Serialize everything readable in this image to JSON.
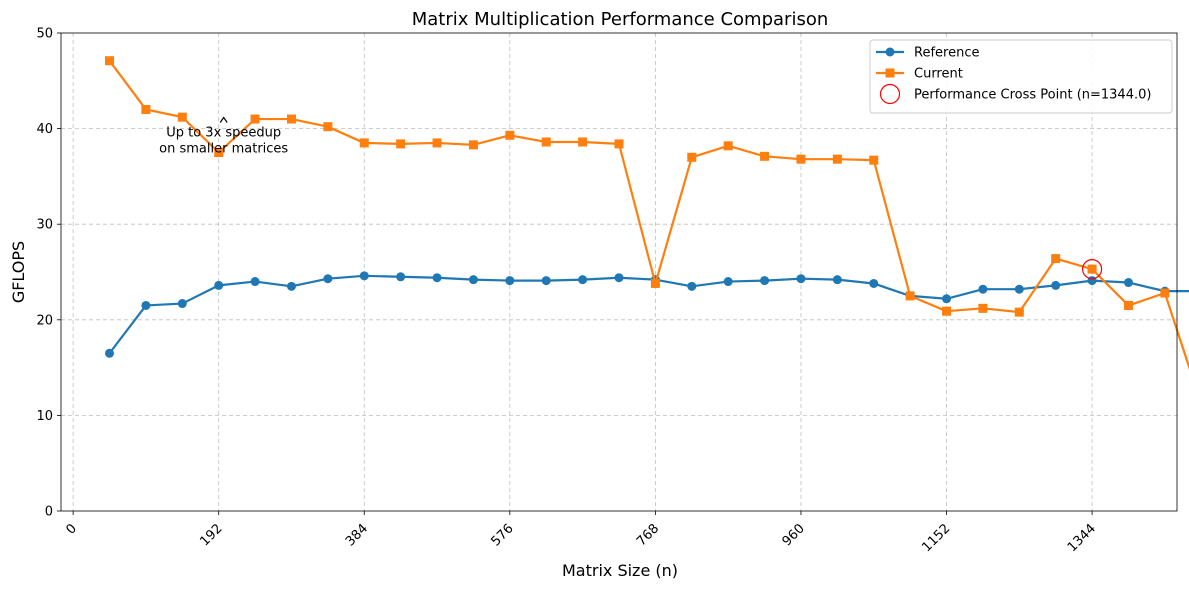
{
  "chart_data": {
    "type": "line",
    "title": "Matrix Multiplication Performance Comparison",
    "xlabel": "Matrix Size (n)",
    "ylabel": "GFLOPS",
    "xlim": [
      -16,
      1456
    ],
    "ylim": [
      0,
      50
    ],
    "xticks": [
      0,
      192,
      384,
      576,
      768,
      960,
      1152,
      1344
    ],
    "yticks": [
      0,
      10,
      20,
      30,
      40,
      50
    ],
    "grid": true,
    "legend_position": "top-right",
    "x": [
      48,
      96,
      144,
      192,
      240,
      288,
      336,
      384,
      432,
      480,
      528,
      576,
      624,
      672,
      720,
      768,
      816,
      864,
      912,
      960,
      1008,
      1056,
      1104,
      1152,
      1200,
      1248,
      1296,
      1344,
      1392,
      1440,
      1488
    ],
    "series": [
      {
        "name": "Reference",
        "color": "#1f77b4",
        "marker": "circle",
        "values": [
          16.5,
          21.5,
          21.7,
          23.6,
          24.0,
          23.5,
          24.3,
          24.6,
          24.5,
          24.4,
          24.2,
          24.1,
          24.1,
          24.2,
          24.4,
          24.2,
          23.5,
          24.0,
          24.1,
          24.3,
          24.2,
          23.8,
          22.5,
          22.2,
          23.2,
          23.2,
          23.6,
          24.1,
          23.9,
          23.0,
          23.0
        ]
      },
      {
        "name": "Current",
        "color": "#ff7f0e",
        "marker": "square",
        "values": [
          47.1,
          42.0,
          41.2,
          37.5,
          41.0,
          41.0,
          40.2,
          38.5,
          38.4,
          38.5,
          38.3,
          39.3,
          38.6,
          38.6,
          38.4,
          23.8,
          37.0,
          38.2,
          37.1,
          36.8,
          36.8,
          36.7,
          22.5,
          20.9,
          21.2,
          20.8,
          26.4,
          25.3,
          21.5,
          22.8,
          11.2
        ]
      }
    ],
    "cross_point": {
      "label": "Performance Cross Point (n=1344.0)",
      "x": 1344,
      "y": 25.3,
      "color": "#ff0000"
    },
    "annotation": {
      "lines": [
        "Up to 3x speedup",
        "on smaller matrices"
      ],
      "arrow_x": 192,
      "arrow_y": 37.5
    }
  }
}
